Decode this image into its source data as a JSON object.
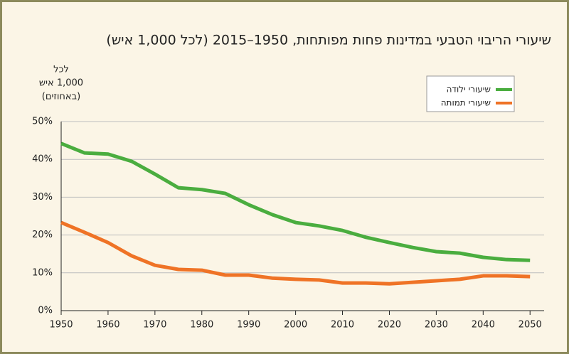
{
  "chart_data": {
    "type": "line",
    "title": "שיעורי הריבוי הטבעי במדינות פחות מפותחות, 1950–2015 (לכל 1,000 איש)",
    "ylabel": [
      "לכל",
      "1,000 איש",
      "(באחוזים)"
    ],
    "x": [
      1950,
      1955,
      1960,
      1965,
      1970,
      1975,
      1980,
      1985,
      1990,
      1995,
      2000,
      2005,
      2010,
      2015,
      2020,
      2025,
      2030,
      2035,
      2040,
      2045,
      2050
    ],
    "series": [
      {
        "name": "שיעורי ילודה",
        "color": "#4aad3f",
        "values": [
          44.2,
          41.7,
          41.4,
          39.5,
          36.1,
          32.5,
          32.0,
          31.0,
          28.0,
          25.4,
          23.3,
          22.4,
          21.2,
          19.4,
          18.0,
          16.7,
          15.6,
          15.2,
          14.1,
          13.5,
          13.3
        ]
      },
      {
        "name": "שיעורי תמותה",
        "color": "#ef7326",
        "values": [
          23.3,
          20.7,
          18.0,
          14.5,
          12.0,
          10.9,
          10.7,
          9.4,
          9.4,
          8.6,
          8.3,
          8.1,
          7.3,
          7.3,
          7.1,
          7.5,
          7.9,
          8.3,
          9.2,
          9.2,
          9.0
        ]
      }
    ],
    "xlim": [
      1950,
      2053
    ],
    "xticks": [
      1950,
      1960,
      1970,
      1980,
      1990,
      2000,
      2010,
      2020,
      2030,
      2040,
      2050
    ],
    "ylim": [
      0,
      50
    ],
    "yticks": [
      {
        "value": 0,
        "label": "0%"
      },
      {
        "value": 10,
        "label": "10%"
      },
      {
        "value": 20,
        "label": "20%"
      },
      {
        "value": 30,
        "label": "30%"
      },
      {
        "value": 40,
        "label": "40%"
      },
      {
        "value": 50,
        "label": "50%"
      }
    ],
    "grid": true,
    "legend": "upper right"
  }
}
